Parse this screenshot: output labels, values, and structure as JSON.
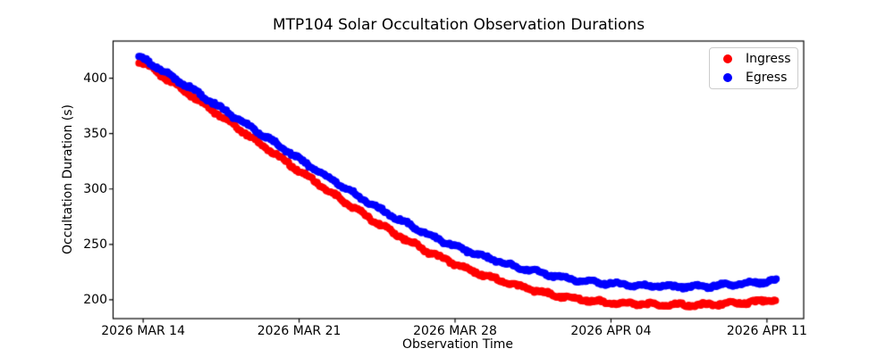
{
  "figure": {
    "background": "#ffffff",
    "frame_color": "#000000"
  },
  "chart_data": {
    "type": "scatter",
    "title": "MTP104 Solar Occultation Observation Durations",
    "xlabel": "Observation Time",
    "ylabel": "Occultation Duration (s)",
    "x_unit": "days since 2026 MAR 14",
    "xlim": [
      -1.35,
      29.65
    ],
    "ylim": [
      183.0,
      433.5
    ],
    "grid": false,
    "legend_position": "upper right",
    "x_ticks": [
      {
        "value": 0,
        "label": "2026 MAR 14"
      },
      {
        "value": 7,
        "label": "2026 MAR 21"
      },
      {
        "value": 14,
        "label": "2026 MAR 28"
      },
      {
        "value": 21,
        "label": "2026 APR 04"
      },
      {
        "value": 28,
        "label": "2026 APR 11"
      }
    ],
    "y_ticks": [
      {
        "value": 200,
        "label": "200"
      },
      {
        "value": 250,
        "label": "250"
      },
      {
        "value": 300,
        "label": "300"
      },
      {
        "value": 350,
        "label": "350"
      },
      {
        "value": 400,
        "label": "400"
      }
    ],
    "series": [
      {
        "name": "Ingress",
        "color": "#ff0000",
        "points": [
          [
            -0.2,
            415.5
          ],
          [
            0,
            413.0
          ],
          [
            1,
            400.0
          ],
          [
            2,
            386.5
          ],
          [
            3,
            372.5
          ],
          [
            4,
            358.5
          ],
          [
            5,
            344.5
          ],
          [
            6,
            330.5
          ],
          [
            7,
            316.5
          ],
          [
            8,
            302.5
          ],
          [
            9,
            289.0
          ],
          [
            10,
            276.0
          ],
          [
            11,
            263.5
          ],
          [
            12,
            252.0
          ],
          [
            13,
            241.5
          ],
          [
            14,
            232.5
          ],
          [
            15,
            224.5
          ],
          [
            16,
            217.5
          ],
          [
            17,
            211.5
          ],
          [
            18,
            206.5
          ],
          [
            19,
            202.5
          ],
          [
            20,
            199.5
          ],
          [
            21,
            197.5
          ],
          [
            22,
            196.5
          ],
          [
            23,
            196.0
          ],
          [
            24,
            195.5
          ],
          [
            25,
            195.5
          ],
          [
            26,
            196.5
          ],
          [
            27,
            197.5
          ],
          [
            28,
            199.0
          ],
          [
            28.4,
            200.0
          ]
        ]
      },
      {
        "name": "Egress",
        "color": "#0000ff",
        "points": [
          [
            -0.2,
            419.5
          ],
          [
            0,
            417.5
          ],
          [
            1,
            404.5
          ],
          [
            2,
            392.5
          ],
          [
            3,
            379.5
          ],
          [
            4,
            366.5
          ],
          [
            5,
            353.5
          ],
          [
            6,
            340.5
          ],
          [
            7,
            327.0
          ],
          [
            8,
            314.5
          ],
          [
            9,
            302.0
          ],
          [
            10,
            289.5
          ],
          [
            11,
            277.5
          ],
          [
            12,
            267.0
          ],
          [
            13,
            257.0
          ],
          [
            14,
            248.5
          ],
          [
            15,
            241.0
          ],
          [
            16,
            234.5
          ],
          [
            17,
            228.5
          ],
          [
            18,
            223.5
          ],
          [
            19,
            219.5
          ],
          [
            20,
            216.5
          ],
          [
            21,
            214.5
          ],
          [
            22,
            213.0
          ],
          [
            23,
            212.5
          ],
          [
            24,
            212.0
          ],
          [
            25,
            212.0
          ],
          [
            26,
            213.0
          ],
          [
            27,
            214.5
          ],
          [
            28,
            216.5
          ],
          [
            28.4,
            217.5
          ]
        ]
      }
    ]
  }
}
